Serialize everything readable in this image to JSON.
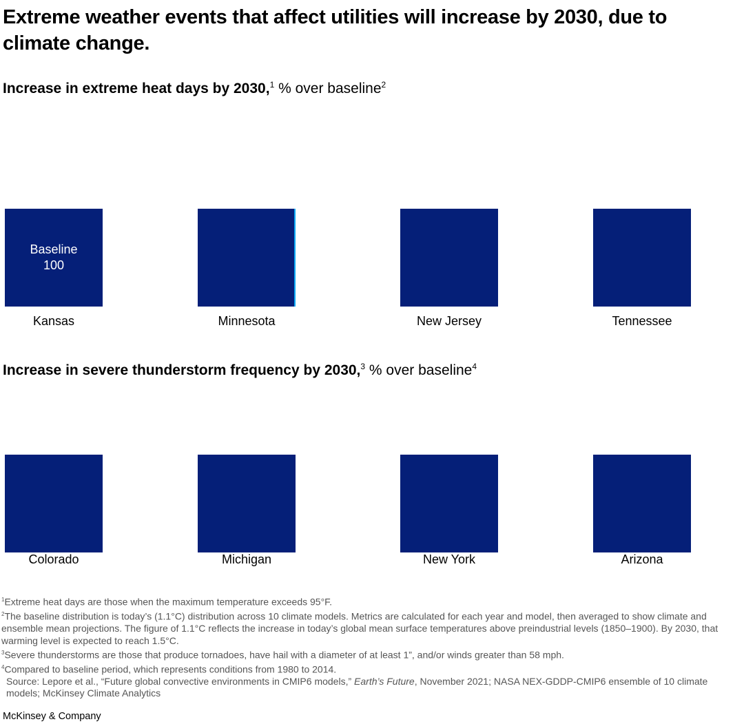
{
  "title": "Extreme weather events that affect utilities will increase by 2030, due to climate change.",
  "chart_data": [
    {
      "type": "square",
      "title_bold": "Increase in extreme heat days by 2030,",
      "title_sup1": "1",
      "title_rest": " % over baseline",
      "title_sup2": "2",
      "categories": [
        "Kansas",
        "Minnesota",
        "New Jersey",
        "Tennessee"
      ],
      "baseline_label": "Baseline",
      "baseline_value": "100",
      "color": "#051f78",
      "accent": "#00a9f4"
    },
    {
      "type": "square",
      "title_bold": "Increase in severe thunderstorm frequency by 2030,",
      "title_sup1": "3",
      "title_rest": " % over baseline",
      "title_sup2": "4",
      "categories": [
        "Colorado",
        "Michigan",
        "New York",
        "Arizona"
      ],
      "color": "#051f78"
    }
  ],
  "footnotes": [
    {
      "sup": "1",
      "text": "Extreme heat days are those when the maximum temperature exceeds 95°F."
    },
    {
      "sup": "2",
      "text": "The baseline distribution is today’s (1.1°C) distribution across 10 climate models. Metrics are calculated for each year and model, then averaged to show climate and ensemble mean projections. The figure of 1.1°C reflects the increase in today’s global mean surface temperatures above preindustrial levels (1850–1900). By 2030, that warming level is expected to reach 1.5°C."
    },
    {
      "sup": "3",
      "text": "Severe thunderstorms are those that produce tornadoes, have hail with a diameter of at least 1”, and/or winds greater than 58 mph."
    },
    {
      "sup": "4",
      "text": "Compared to baseline period, which represents conditions from 1980 to 2014."
    }
  ],
  "source": {
    "pre": "Source: Lepore et al., “Future global convective environments in CMIP6 models,” ",
    "italic": "Earth’s Future",
    "post": ", November 2021; NASA NEX-GDDP-CMIP6 ensemble of 10 climate models; McKinsey Climate Analytics"
  },
  "logo": "McKinsey & Company"
}
